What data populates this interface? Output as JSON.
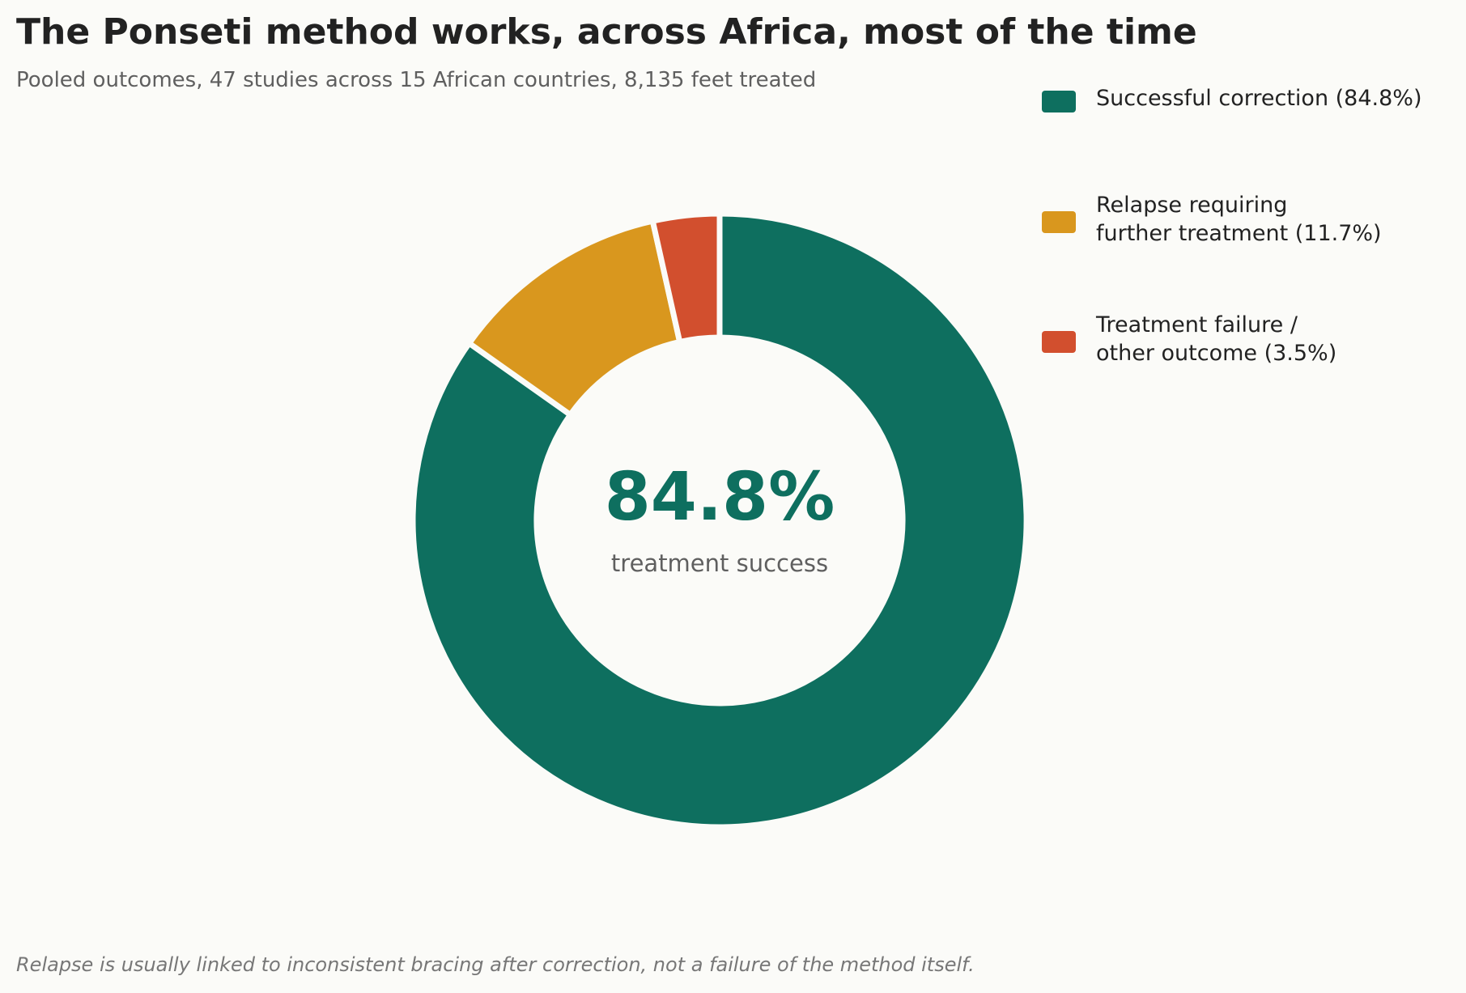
{
  "chart_data": {
    "type": "pie",
    "variant": "donut",
    "title": "The Ponseti method works, across Africa, most of the time",
    "subtitle": "Pooled outcomes, 47 studies across 15 African countries, 8,135 feet treated",
    "slices": [
      {
        "name": "Successful correction",
        "value": 84.8,
        "color": "#0e6f5f",
        "legend_lines": [
          "Successful correction  (84.8%)"
        ]
      },
      {
        "name": "Relapse requiring further treatment",
        "value": 11.7,
        "color": "#d9971e",
        "legend_lines": [
          "Relapse requiring",
          "further treatment  (11.7%)"
        ]
      },
      {
        "name": "Treatment failure / other outcome",
        "value": 3.5,
        "color": "#d24f2e",
        "legend_lines": [
          "Treatment failure /",
          "other outcome  (3.5%)"
        ]
      }
    ],
    "center": {
      "value": "84.8%",
      "label": "treatment success",
      "color": "#0e6f5f"
    },
    "legend_position": "top-right",
    "footnote": "Relapse is usually linked to inconsistent bracing after correction, not a failure of the method itself."
  }
}
